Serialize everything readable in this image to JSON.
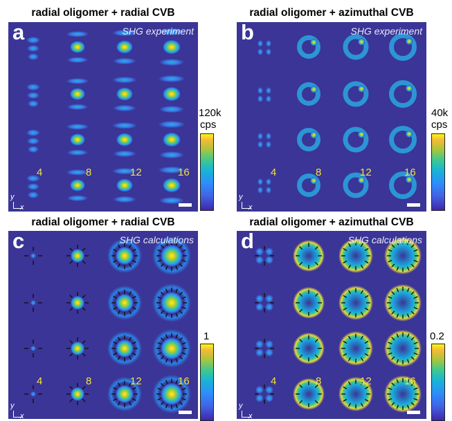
{
  "panels": [
    {
      "title": "radial oligomer + radial CVB",
      "letter": "a",
      "tag": "SHG experiment",
      "colorbar_max": "120k",
      "colorbar_unit": "cps"
    },
    {
      "title": "radial oligomer + azimuthal CVB",
      "letter": "b",
      "tag": "SHG experiment",
      "colorbar_max": "40k",
      "colorbar_unit": "cps"
    },
    {
      "title": "radial oligomer + radial CVB",
      "letter": "c",
      "tag": "SHG calculations",
      "colorbar_max": "1",
      "colorbar_unit": ""
    },
    {
      "title": "radial oligomer + azimuthal CVB",
      "letter": "d",
      "tag": "SHG calculations",
      "colorbar_max": "0.2",
      "colorbar_unit": ""
    }
  ],
  "column_numbers": [
    "4",
    "8",
    "12",
    "16"
  ],
  "axis_labels": {
    "y": "y",
    "x": "x"
  },
  "colors": {
    "background": "#3a3596",
    "number_text": "#f3e43a",
    "hot": "#f9f615"
  },
  "colormap": "parula"
}
